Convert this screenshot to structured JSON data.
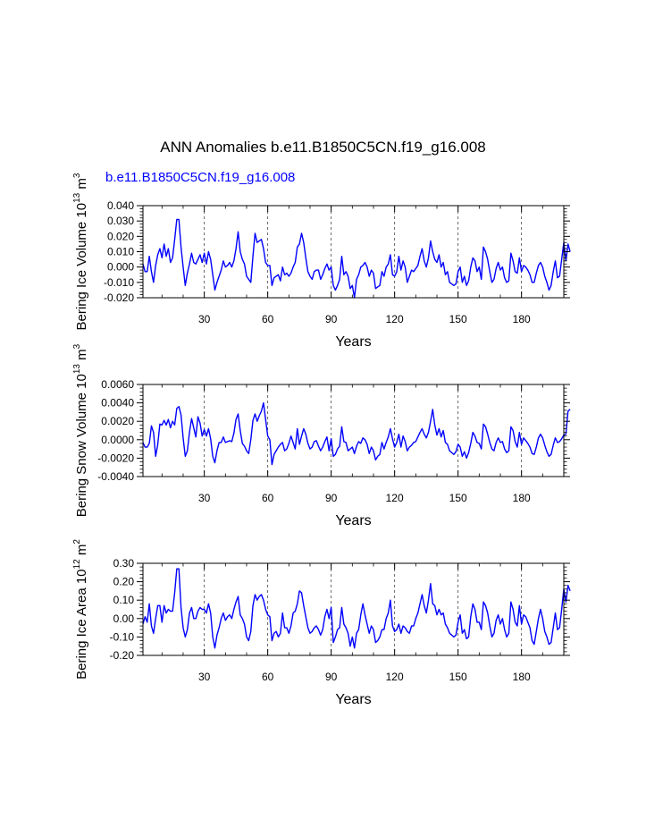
{
  "title": "ANN Anomalies b.e11.B1850C5CN.f19_g16.008",
  "case_label": "b.e11.B1850C5CN.f19_g16.008",
  "series_color": "#0000ff",
  "chart_data": [
    {
      "type": "line",
      "title": "",
      "xlabel": "Years",
      "ylabel": {
        "base": "Bering Ice Volume 10",
        "exp1": "13",
        "unit": " m",
        "exp2": "3"
      },
      "xlim": [
        1,
        200
      ],
      "ylim": [
        -0.02,
        0.04
      ],
      "xticks": [
        30,
        60,
        90,
        120,
        150,
        180
      ],
      "yticks": [
        -0.02,
        -0.01,
        0.0,
        0.01,
        0.02,
        0.03,
        0.04
      ],
      "ytick_labels": [
        "-0.020",
        "-0.010",
        "0.000",
        "0.010",
        "0.020",
        "0.030",
        "0.040"
      ],
      "grid_x": true,
      "series": [
        {
          "values": [
            0.002,
            -0.003,
            -0.003,
            0.007,
            -0.003,
            -0.01,
            0.001,
            0.008,
            0.012,
            0.006,
            0.015,
            0.007,
            0.012,
            0.003,
            0.006,
            0.018,
            0.031,
            0.031,
            0.013,
            0.0,
            -0.012,
            -0.004,
            0.002,
            0.009,
            0.003,
            0.002,
            0.005,
            0.008,
            0.003,
            0.009,
            0.002,
            0.01,
            0.005,
            -0.005,
            -0.015,
            -0.01,
            -0.006,
            -0.002,
            0.004,
            0.0,
            0.001,
            0.003,
            0.0,
            0.004,
            0.012,
            0.023,
            0.01,
            0.005,
            0.002,
            -0.006,
            -0.008,
            -0.01,
            0.007,
            0.022,
            0.016,
            0.017,
            0.018,
            0.012,
            0.003,
            0.001,
            0.001,
            -0.012,
            -0.007,
            -0.006,
            -0.005,
            -0.009,
            0.0,
            -0.005,
            -0.004,
            -0.006,
            -0.004,
            0.0,
            0.003,
            0.013,
            0.015,
            0.022,
            0.016,
            0.006,
            -0.003,
            -0.006,
            -0.008,
            -0.003,
            -0.002,
            -0.002,
            -0.008,
            -0.005,
            -0.001,
            0.002,
            -0.002,
            0.0,
            -0.012,
            -0.015,
            -0.012,
            -0.008,
            0.007,
            -0.005,
            -0.003,
            -0.006,
            -0.014,
            -0.012,
            -0.02,
            -0.008,
            -0.005,
            0.0,
            0.001,
            0.003,
            0.0,
            -0.006,
            -0.002,
            -0.004,
            -0.014,
            -0.013,
            -0.012,
            -0.003,
            -0.006,
            0.0,
            0.002,
            0.008,
            -0.005,
            -0.006,
            -0.003,
            0.007,
            -0.002,
            0.004,
            0.0,
            -0.01,
            -0.006,
            -0.002,
            -0.003,
            -0.001,
            0.001,
            0.007,
            0.012,
            0.004,
            0.0,
            0.006,
            0.017,
            0.01,
            0.005,
            0.003,
            0.008,
            0.0,
            0.003,
            -0.005,
            -0.003,
            -0.01,
            -0.011,
            -0.012,
            -0.011,
            -0.003,
            0.0,
            -0.01,
            -0.006,
            -0.012,
            -0.009,
            0.0,
            0.006,
            0.004,
            -0.003,
            0.0,
            -0.008,
            0.013,
            0.01,
            0.005,
            -0.003,
            -0.01,
            -0.008,
            -0.001,
            0.003,
            -0.002,
            0.0,
            -0.007,
            -0.01,
            -0.009,
            0.009,
            0.004,
            -0.003,
            -0.004,
            0.006,
            -0.003,
            0.001,
            0.0,
            -0.002,
            -0.005,
            -0.01,
            -0.01,
            -0.004,
            0.001,
            0.003,
            0.0,
            -0.006,
            -0.01,
            -0.015,
            -0.012,
            -0.003,
            0.004,
            -0.007,
            -0.006,
            0.005,
            0.016,
            0.004,
            0.015,
            0.01
          ]
        }
      ]
    },
    {
      "type": "line",
      "title": "",
      "xlabel": "Years",
      "ylabel": {
        "base": "Bering Snow Volume 10",
        "exp1": "13",
        "unit": " m",
        "exp2": "3"
      },
      "xlim": [
        1,
        200
      ],
      "ylim": [
        -0.004,
        0.006
      ],
      "xticks": [
        30,
        60,
        90,
        120,
        150,
        180
      ],
      "yticks": [
        -0.004,
        -0.002,
        0.0,
        0.002,
        0.004,
        0.006
      ],
      "ytick_labels": [
        "-0.0040",
        "-0.0020",
        "0.0000",
        "0.0020",
        "0.0040",
        "0.0060"
      ],
      "grid_x": true,
      "series": [
        {
          "values": [
            -0.0003,
            -0.0008,
            -0.0008,
            -0.0004,
            0.0015,
            0.0008,
            -0.0018,
            -0.0005,
            0.0017,
            0.0016,
            0.0021,
            0.0016,
            0.0022,
            0.0013,
            0.002,
            0.0016,
            0.0034,
            0.0036,
            0.0027,
            0.0002,
            -0.0018,
            -0.0012,
            0.0008,
            0.0023,
            0.0013,
            0.0003,
            0.0025,
            0.0018,
            0.0004,
            0.0011,
            0.0004,
            0.0012,
            0.0001,
            -0.0018,
            -0.0025,
            -0.0012,
            -0.0003,
            -0.0003,
            0.0003,
            -0.0003,
            -0.0002,
            -0.0001,
            -0.0002,
            0.0007,
            0.0022,
            0.0028,
            0.001,
            -0.0004,
            -0.0007,
            -0.0012,
            -0.0015,
            0.0,
            0.0021,
            0.0028,
            0.002,
            0.0026,
            0.0031,
            0.004,
            0.0022,
            0.0004,
            0.0,
            -0.0027,
            -0.0016,
            -0.0012,
            -0.0008,
            -0.0005,
            -0.0003,
            -0.0012,
            -0.001,
            -0.0004,
            0.0004,
            -0.0003,
            -0.001,
            0.0012,
            -0.0005,
            0.0004,
            0.0012,
            0.0006,
            -0.0004,
            -0.001,
            -0.0008,
            -0.0002,
            -0.0001,
            -0.0007,
            -0.0012,
            -0.0008,
            -0.0002,
            0.0003,
            -0.0012,
            0.0001,
            -0.0018,
            -0.0016,
            -0.001,
            -0.0007,
            0.0014,
            -0.0002,
            -0.0003,
            -0.0012,
            -0.001,
            -0.0008,
            -0.0015,
            -0.0007,
            -0.0002,
            -0.0004,
            0.0002,
            0.0,
            -0.0005,
            -0.0015,
            -0.0008,
            -0.0012,
            -0.0022,
            -0.0018,
            -0.0016,
            -0.0003,
            -0.001,
            -0.0003,
            0.0003,
            0.0012,
            0.0001,
            -0.0008,
            -0.0003,
            0.0006,
            -0.0008,
            0.0004,
            -0.0002,
            -0.0012,
            -0.0008,
            -0.0006,
            -0.0003,
            -0.0002,
            0.0003,
            0.0008,
            0.0012,
            0.0006,
            0.0002,
            0.0008,
            0.002,
            0.0033,
            0.0016,
            0.0005,
            0.0012,
            0.0003,
            0.001,
            -0.0003,
            -0.0005,
            -0.0012,
            -0.0014,
            -0.0016,
            -0.0013,
            -0.0005,
            -0.0008,
            -0.0018,
            -0.0013,
            -0.002,
            -0.0014,
            -0.0004,
            0.0008,
            0.0004,
            -0.0003,
            -0.0004,
            -0.001,
            0.0017,
            0.0014,
            0.0006,
            -0.0003,
            -0.001,
            -0.0012,
            -0.0003,
            0.0002,
            -0.0003,
            -0.0002,
            -0.001,
            -0.0014,
            -0.0012,
            0.0014,
            0.001,
            -0.0002,
            -0.0008,
            0.0008,
            -0.0005,
            0.0002,
            -0.0001,
            -0.0004,
            -0.0008,
            -0.0015,
            -0.0016,
            -0.0008,
            0.0002,
            0.0006,
            0.0002,
            -0.0006,
            -0.0013,
            -0.0018,
            -0.0016,
            -0.0006,
            0.0002,
            -0.0003,
            -0.0002,
            0.0001,
            0.0005,
            0.0006,
            0.0031,
            0.0033
          ]
        }
      ]
    },
    {
      "type": "line",
      "title": "",
      "xlabel": "Years",
      "ylabel": {
        "base": "Bering Ice Area 10",
        "exp1": "12",
        "unit": " m",
        "exp2": "2"
      },
      "xlim": [
        1,
        200
      ],
      "ylim": [
        -0.2,
        0.3
      ],
      "xticks": [
        30,
        60,
        90,
        120,
        150,
        180
      ],
      "yticks": [
        -0.2,
        -0.1,
        0.0,
        0.1,
        0.2,
        0.3
      ],
      "ytick_labels": [
        "-0.20",
        "-0.10",
        "0.00",
        "0.10",
        "0.20",
        "0.30"
      ],
      "grid_x": true,
      "series": [
        {
          "values": [
            -0.03,
            0.01,
            -0.02,
            0.08,
            -0.04,
            -0.08,
            0.0,
            0.07,
            0.07,
            -0.02,
            0.07,
            0.03,
            0.05,
            0.04,
            0.04,
            0.14,
            0.27,
            0.27,
            0.06,
            -0.05,
            -0.1,
            -0.06,
            0.03,
            0.06,
            0.0,
            0.0,
            0.04,
            0.06,
            0.05,
            0.05,
            0.03,
            0.08,
            0.03,
            -0.1,
            -0.16,
            -0.09,
            -0.05,
            0.0,
            0.03,
            -0.01,
            0.01,
            0.02,
            0.0,
            0.05,
            0.09,
            0.12,
            0.02,
            0.0,
            -0.03,
            -0.1,
            -0.12,
            -0.07,
            0.07,
            0.13,
            0.1,
            0.12,
            0.13,
            0.1,
            0.05,
            0.02,
            0.01,
            -0.12,
            -0.08,
            -0.07,
            -0.1,
            -0.08,
            0.03,
            -0.05,
            -0.05,
            -0.08,
            -0.04,
            0.03,
            0.04,
            0.08,
            0.15,
            0.14,
            0.07,
            0.01,
            -0.05,
            -0.08,
            -0.07,
            -0.05,
            -0.04,
            -0.06,
            -0.09,
            -0.06,
            0.01,
            0.05,
            0.0,
            0.06,
            -0.13,
            -0.1,
            -0.06,
            -0.05,
            0.06,
            -0.03,
            -0.05,
            -0.08,
            -0.15,
            -0.1,
            -0.16,
            -0.08,
            -0.06,
            0.02,
            0.08,
            0.02,
            -0.03,
            -0.08,
            -0.04,
            -0.06,
            -0.13,
            -0.12,
            -0.1,
            -0.06,
            -0.06,
            0.0,
            0.03,
            0.1,
            -0.04,
            -0.07,
            -0.06,
            -0.03,
            -0.08,
            -0.04,
            -0.05,
            -0.07,
            -0.08,
            -0.04,
            -0.04,
            0.0,
            0.03,
            0.08,
            0.13,
            0.07,
            0.03,
            0.1,
            0.19,
            0.08,
            0.07,
            0.02,
            0.05,
            0.02,
            0.03,
            -0.03,
            -0.05,
            -0.08,
            -0.09,
            -0.1,
            -0.09,
            -0.02,
            0.02,
            -0.08,
            -0.06,
            -0.11,
            -0.1,
            0.01,
            0.08,
            0.05,
            -0.02,
            -0.02,
            -0.06,
            0.09,
            0.07,
            0.03,
            -0.04,
            -0.1,
            -0.08,
            -0.01,
            0.02,
            -0.03,
            0.0,
            -0.06,
            -0.1,
            -0.08,
            0.09,
            0.05,
            -0.02,
            -0.04,
            0.07,
            -0.03,
            0.02,
            0.01,
            -0.02,
            -0.05,
            -0.12,
            -0.14,
            -0.07,
            0.0,
            0.05,
            0.0,
            -0.07,
            -0.1,
            -0.14,
            -0.13,
            -0.05,
            0.03,
            -0.06,
            -0.05,
            0.05,
            0.16,
            0.09,
            0.18,
            0.15
          ]
        }
      ]
    }
  ]
}
